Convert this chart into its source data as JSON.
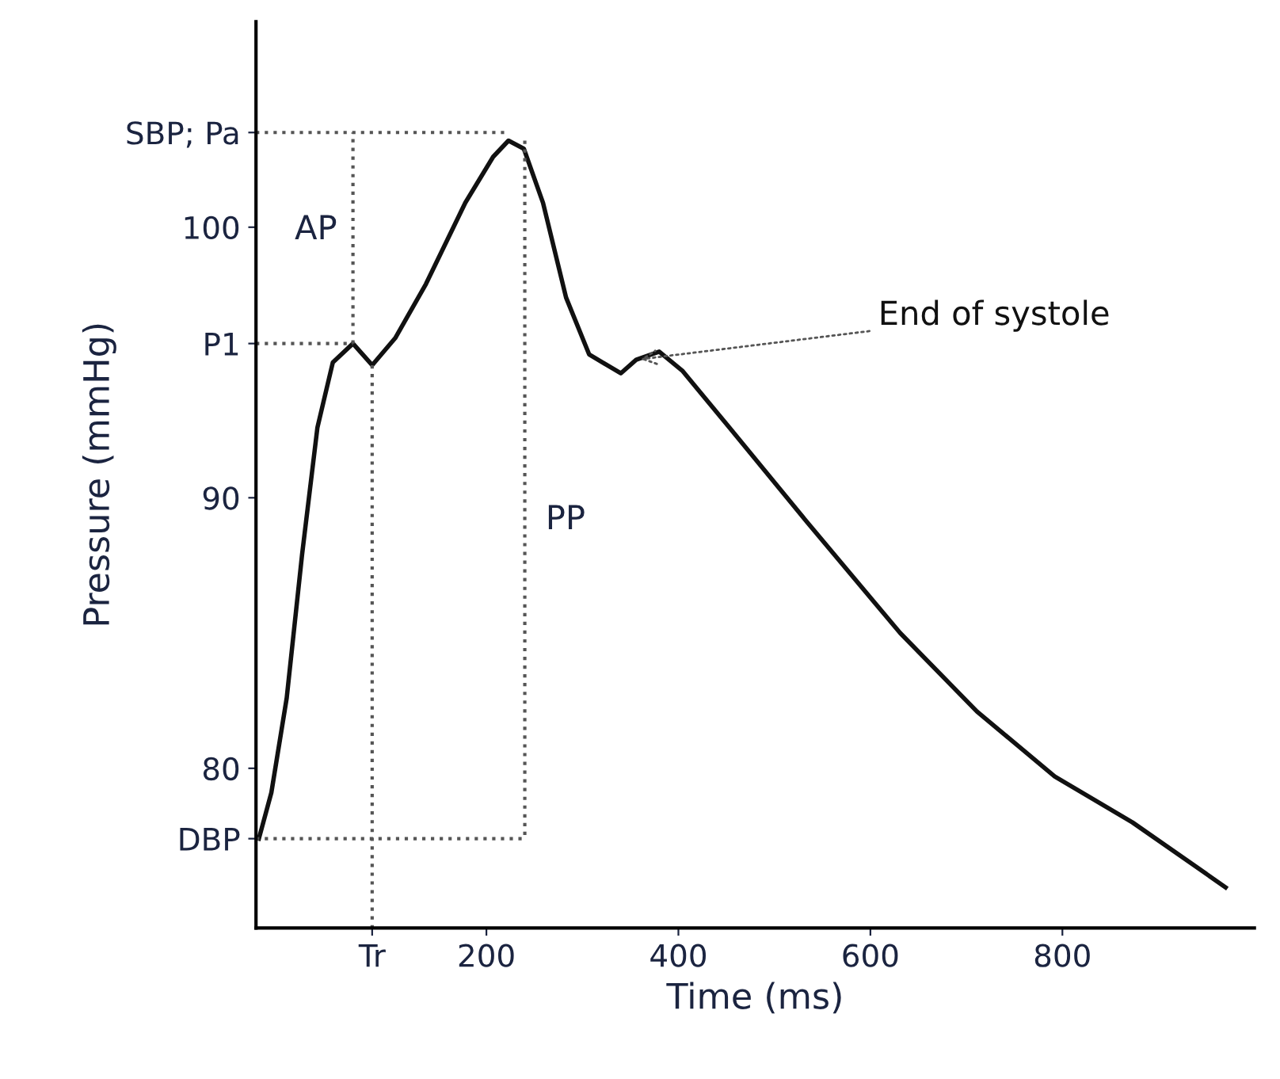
{
  "chart_data": {
    "type": "line",
    "xlabel": "Time (ms)",
    "ylabel": "Pressure (mmHg)",
    "xlim": [
      -40,
      1000
    ],
    "ylim": [
      74.1,
      107.6
    ],
    "xticks": [
      {
        "value": 81,
        "label": "Tr"
      },
      200,
      400,
      600,
      800
    ],
    "yticks": [
      {
        "value": 77.4,
        "label": "DBP"
      },
      80,
      90,
      {
        "value": 95.7,
        "label": "P1"
      },
      100,
      {
        "value": 103.5,
        "label": "SBP; Pa"
      }
    ],
    "grid": false,
    "marker": "none",
    "series": [
      {
        "color": "#111111",
        "line_style": "solid",
        "x": [
          -37,
          -24,
          -8,
          8,
          24,
          40,
          61,
          81,
          105,
          137,
          178,
          207,
          223,
          239,
          259,
          283,
          307,
          340,
          356,
          380,
          404,
          453,
          534,
          631,
          711,
          792,
          873,
          970
        ],
        "values": [
          77.4,
          79.1,
          82.6,
          87.9,
          92.6,
          95.0,
          95.7,
          94.9,
          95.9,
          97.9,
          100.9,
          102.6,
          103.2,
          102.9,
          100.9,
          97.4,
          95.3,
          94.6,
          95.1,
          95.4,
          94.7,
          92.6,
          89.1,
          85.0,
          82.1,
          79.7,
          78.0,
          75.6
        ]
      },
      {
        "color": "#555555",
        "line_style": "dotted",
        "x": [
          -40,
          223
        ],
        "values": [
          103.5,
          103.5
        ]
      },
      {
        "color": "#555555",
        "line_style": "dotted",
        "x": [
          -40,
          61
        ],
        "values": [
          95.7,
          95.7
        ]
      },
      {
        "color": "#555555",
        "line_style": "dotted",
        "x": [
          -40,
          240
        ],
        "values": [
          77.4,
          77.4
        ]
      },
      {
        "color": "#555555",
        "line_style": "dotted",
        "x": [
          61,
          61
        ],
        "values": [
          95.7,
          103.5
        ]
      },
      {
        "color": "#555555",
        "line_style": "dotted",
        "x": [
          240,
          240
        ],
        "values": [
          103.2,
          77.4
        ]
      },
      {
        "color": "#555555",
        "line_style": "dotted",
        "x": [
          81,
          81
        ],
        "values": [
          94.9,
          74.1
        ]
      }
    ],
    "annotations": [
      "AP",
      "PP",
      {
        "text": "End of systole",
        "x": 356,
        "y": 95.1
      }
    ]
  }
}
